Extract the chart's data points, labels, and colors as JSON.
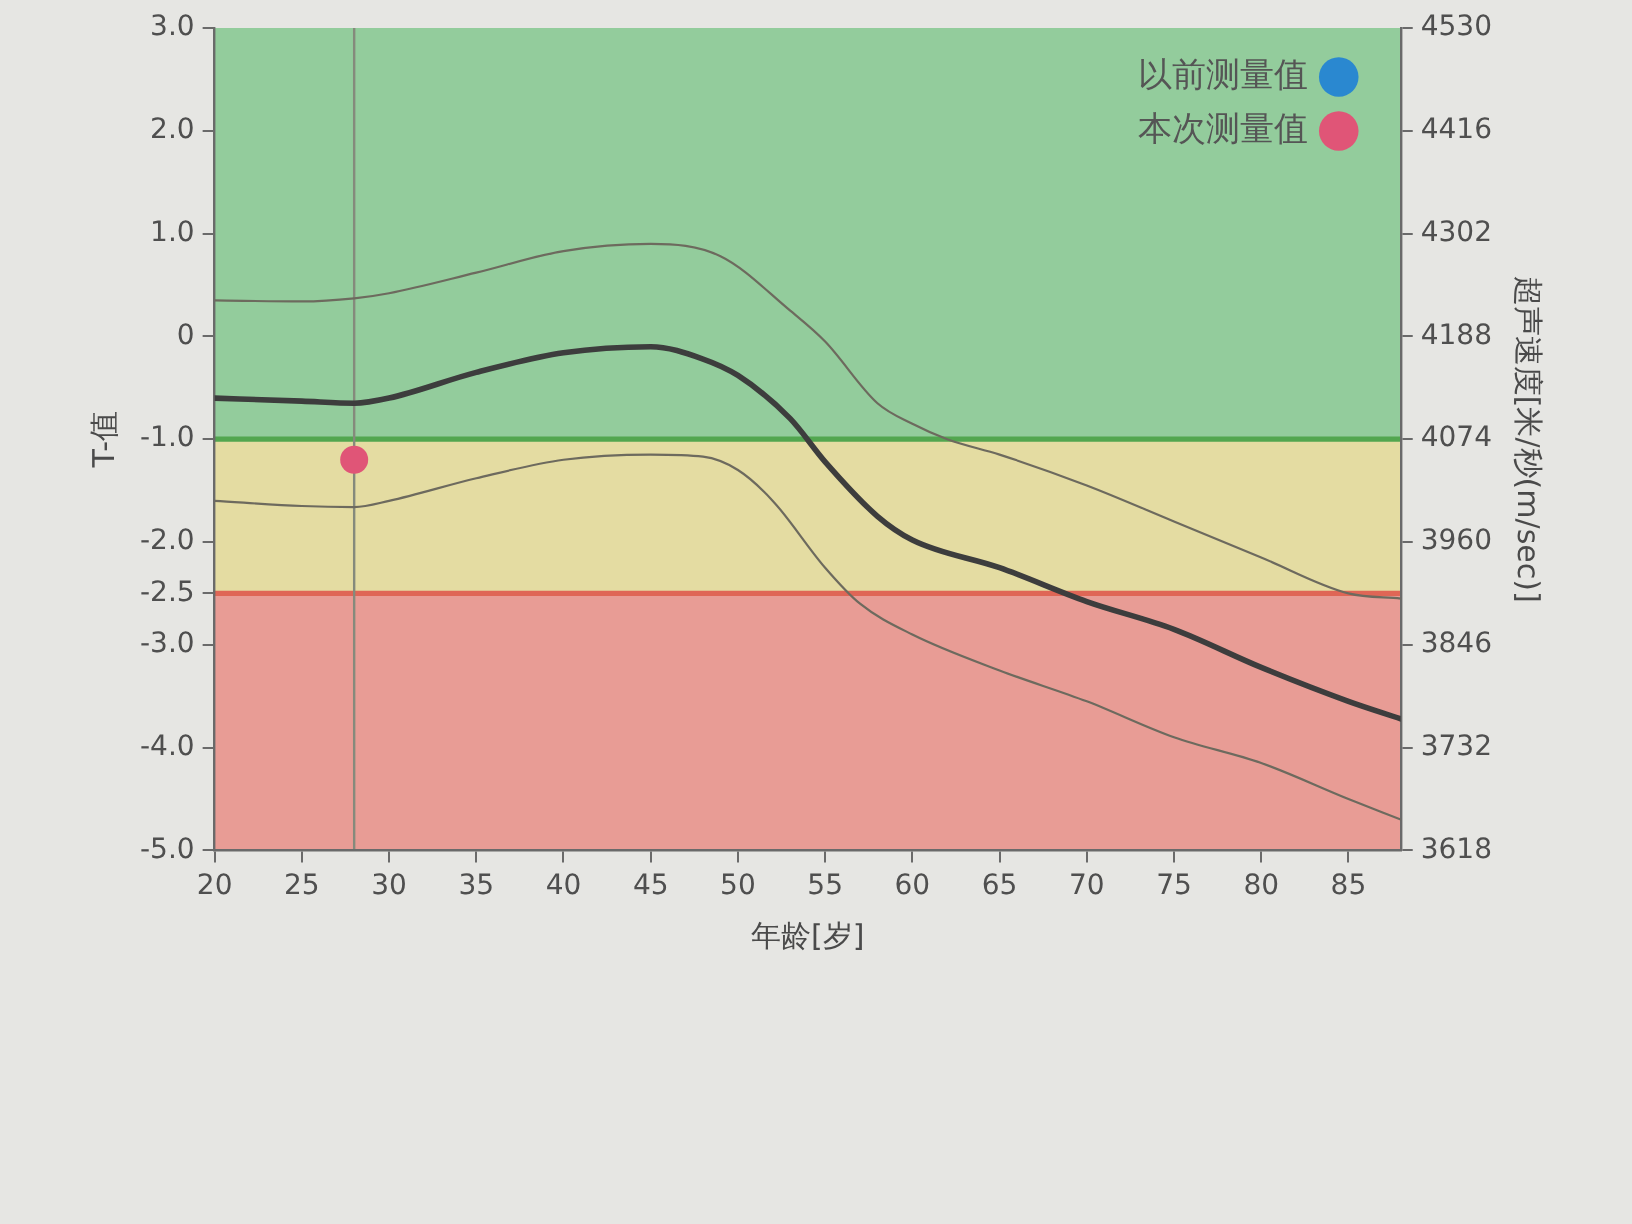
{
  "chart_data": {
    "type": "line",
    "xlabel": "年龄[岁]",
    "ylabel": "T-值",
    "y2label": "超声速度[米/秒(m/sec)]",
    "series": [
      {
        "name": "以前测量值",
        "type": "scatter",
        "color": "#2a88d0",
        "marker": "circle"
      },
      {
        "color": "#3d3d3d",
        "marker": "none",
        "x": [
          20,
          25,
          28,
          30,
          35,
          40,
          45,
          48,
          50,
          53,
          55,
          58,
          60,
          65,
          70,
          75,
          80,
          85,
          88
        ],
        "values": [
          -0.6,
          -0.63,
          -0.65,
          -0.6,
          -0.35,
          -0.16,
          -0.1,
          -0.22,
          -0.38,
          -0.8,
          -1.22,
          -1.75,
          -1.98,
          -2.25,
          -2.58,
          -2.85,
          -3.22,
          -3.55,
          -3.72
        ]
      },
      {
        "color": "#6d6a5e",
        "marker": "none",
        "x": [
          20,
          25,
          28,
          30,
          35,
          40,
          45,
          49,
          53,
          55,
          58,
          60,
          62,
          65,
          70,
          75,
          80,
          85,
          88
        ],
        "values": [
          0.35,
          0.34,
          0.37,
          0.42,
          0.62,
          0.83,
          0.9,
          0.78,
          0.25,
          -0.05,
          -0.65,
          -0.85,
          -1.0,
          -1.15,
          -1.45,
          -1.8,
          -2.15,
          -2.5,
          -2.55
        ]
      },
      {
        "color": "#6d6a5e",
        "marker": "none",
        "x": [
          20,
          25,
          28,
          30,
          35,
          40,
          45,
          48,
          50,
          52,
          55,
          57,
          60,
          65,
          70,
          75,
          80,
          85,
          88
        ],
        "values": [
          -1.6,
          -1.65,
          -1.66,
          -1.6,
          -1.38,
          -1.2,
          -1.15,
          -1.17,
          -1.3,
          -1.6,
          -2.25,
          -2.6,
          -2.9,
          -3.25,
          -3.55,
          -3.9,
          -4.15,
          -4.5,
          -4.7
        ]
      },
      {
        "name": "本次测量值",
        "type": "scatter",
        "color": "#e05577",
        "marker": "circle",
        "x": [
          28
        ],
        "values": [
          -1.2
        ]
      }
    ],
    "xlim": [
      20,
      88
    ],
    "xticks": [
      20,
      25,
      30,
      35,
      40,
      45,
      50,
      55,
      60,
      65,
      70,
      75,
      80,
      85
    ],
    "ylim": [
      -5,
      3
    ],
    "yticks": [
      {
        "value": 3,
        "label": "3.0"
      },
      {
        "value": 2,
        "label": "2.0"
      },
      {
        "value": 1,
        "label": "1.0"
      },
      0,
      {
        "value": -1,
        "label": "-1.0"
      },
      {
        "value": -2,
        "label": "-2.0"
      },
      -2.5,
      {
        "value": -3,
        "label": "-3.0"
      },
      {
        "value": -4,
        "label": "-4.0"
      },
      {
        "value": -5,
        "label": "-5.0"
      }
    ],
    "y2lim": [
      3618,
      4530
    ],
    "y2ticks": [
      3618,
      3732,
      3846,
      3960,
      4074,
      4188,
      4302,
      4416,
      4530
    ],
    "bands": [
      {
        "axis": "y",
        "from": -1,
        "to": 3,
        "color": "#93cc9c"
      },
      {
        "axis": "y",
        "from": -2.5,
        "to": -1,
        "color": "#e4dca2"
      },
      {
        "axis": "y",
        "from": -5,
        "to": -2.5,
        "color": "#e89c95"
      }
    ],
    "ref_lines": [
      {
        "axis": "y",
        "value": -1,
        "color": "#52a64f"
      },
      {
        "axis": "y",
        "value": -2.5,
        "color": "#df6656"
      },
      {
        "axis": "x",
        "value": 28,
        "color": "#858a7c"
      }
    ],
    "legend": "top right"
  }
}
